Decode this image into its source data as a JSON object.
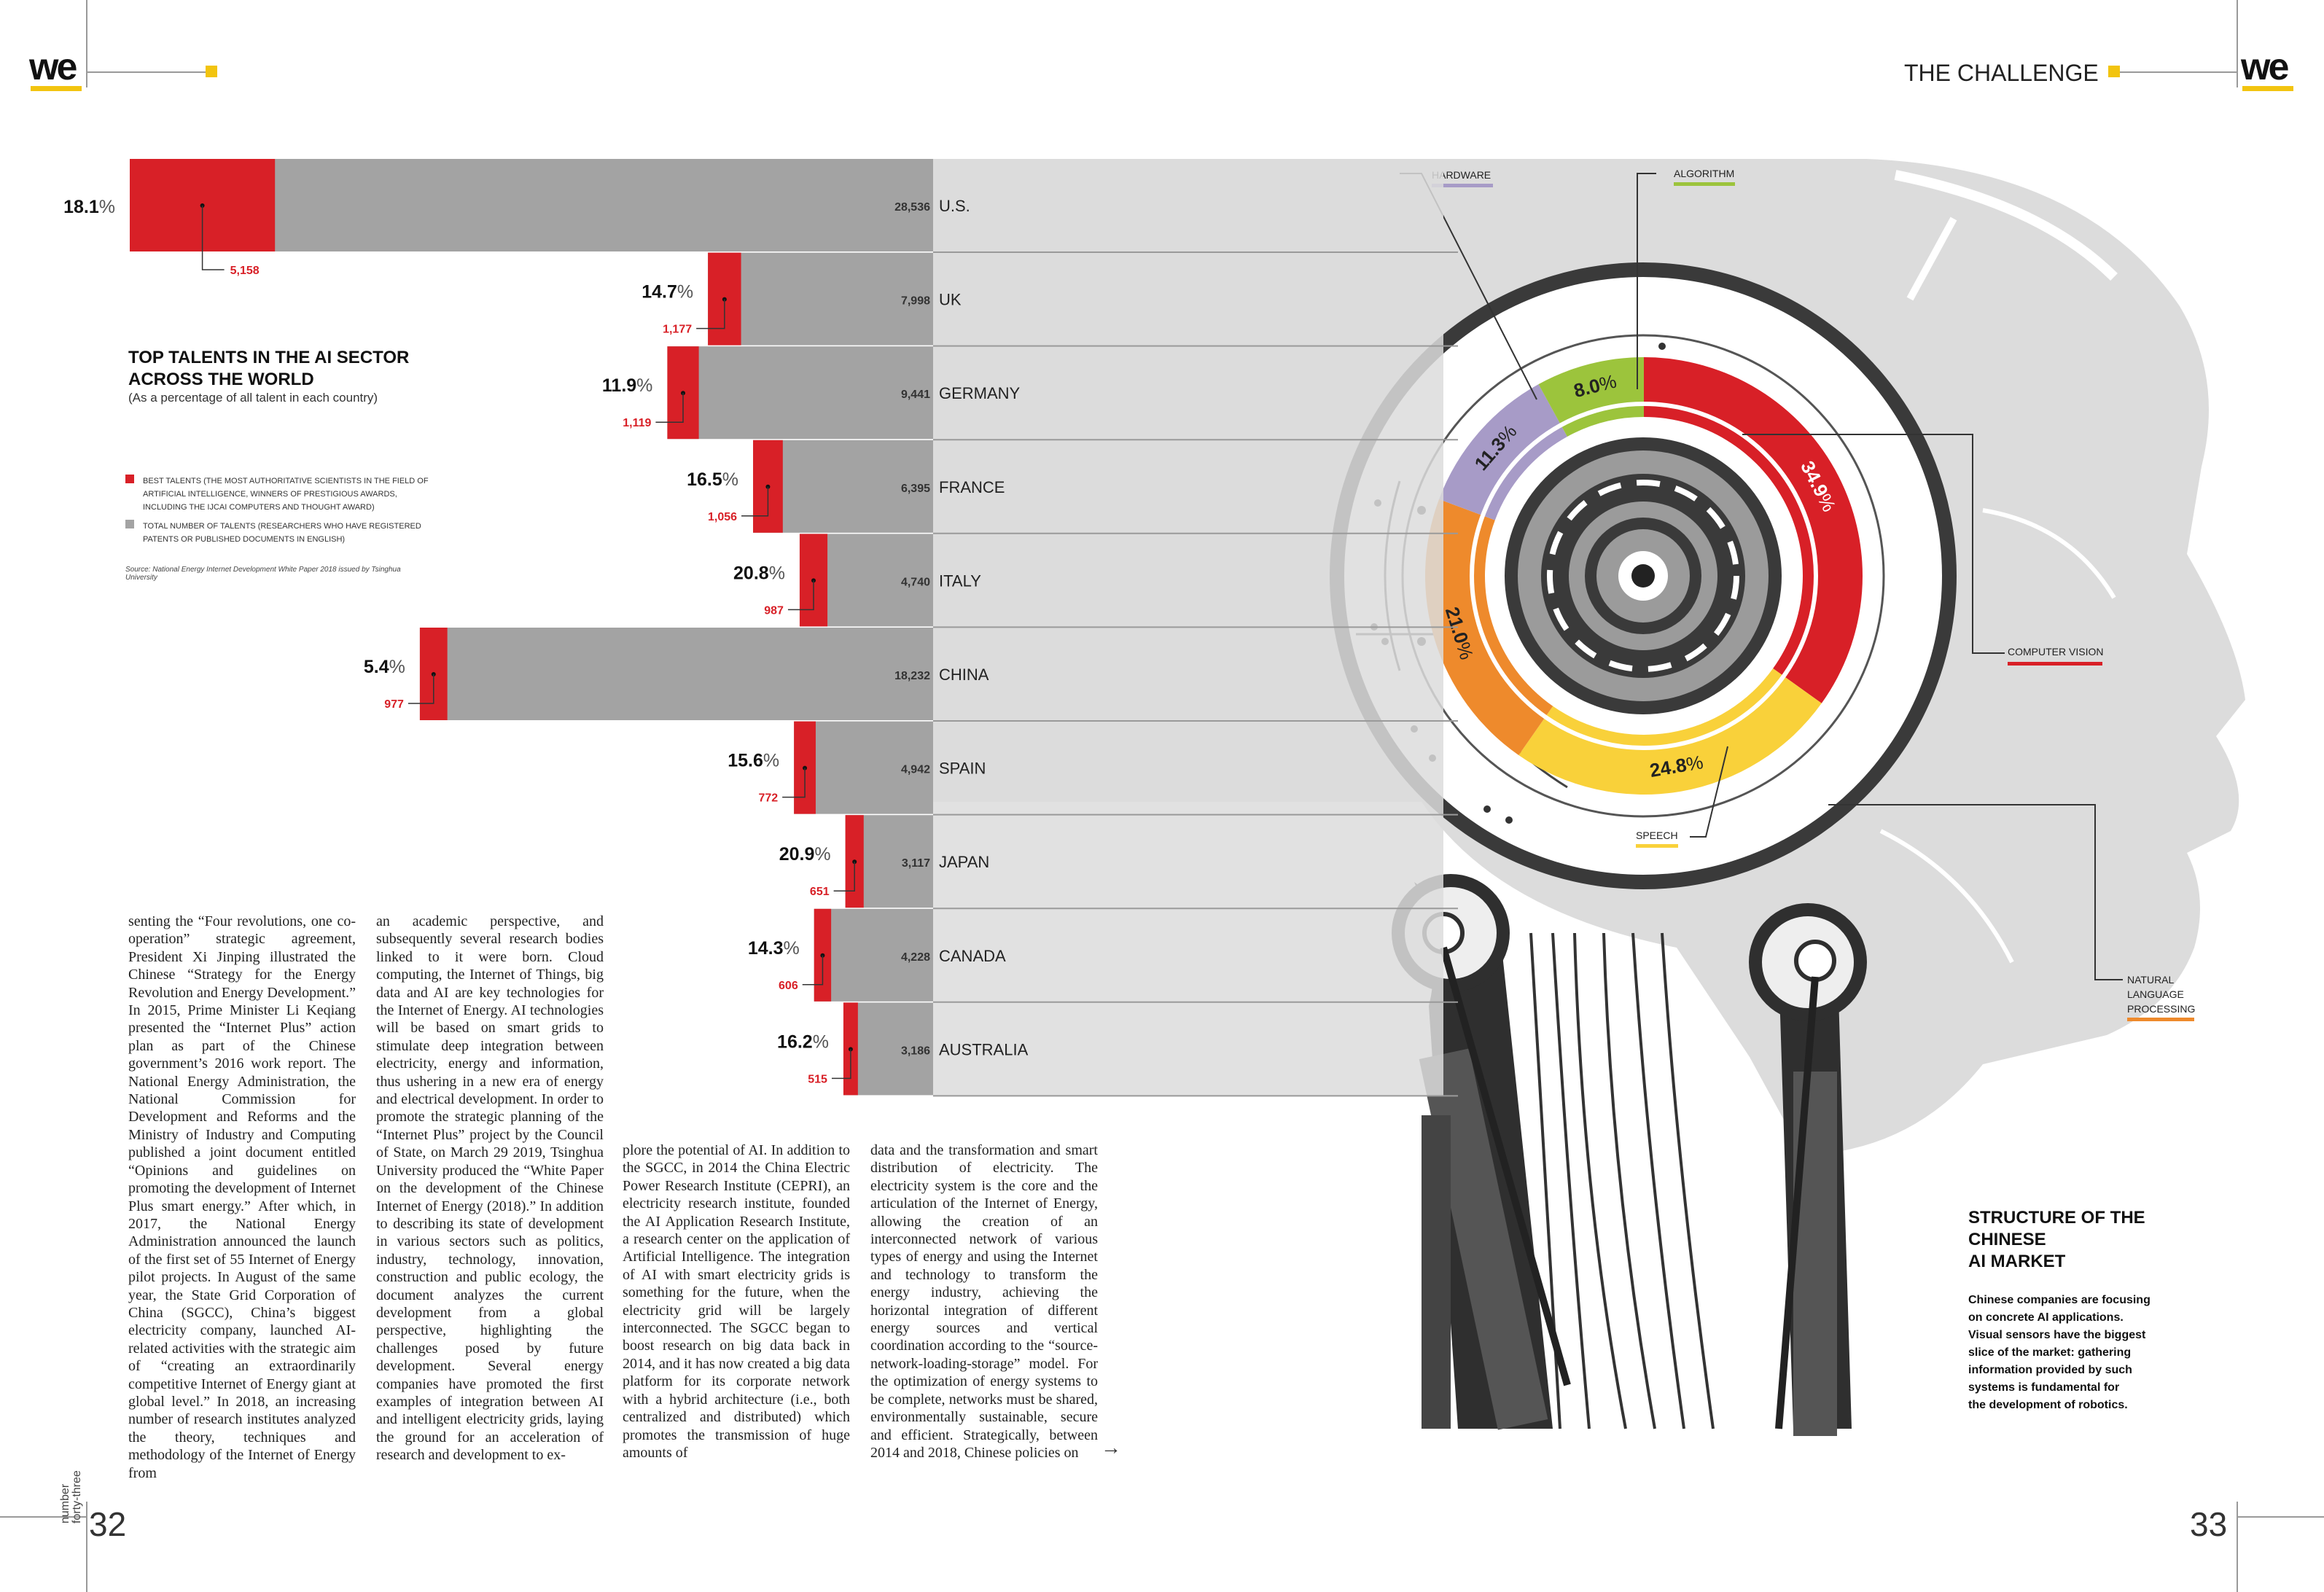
{
  "header": {
    "logo": "we",
    "section": "THE CHALLENGE"
  },
  "talent_chart": {
    "title_line1": "TOP TALENTS IN THE AI SECTOR",
    "title_line2": "ACROSS THE WORLD",
    "subtitle": "(As a percentage of all talent in each country)",
    "legend": [
      {
        "label": "BEST TALENTS (THE MOST AUTHORITATIVE SCIENTISTS IN THE FIELD OF ARTIFICIAL INTELLIGENCE, WINNERS OF PRESTIGIOUS AWARDS, INCLUDING THE IJCAI COMPUTERS AND THOUGHT AWARD)",
        "color": "#d82027"
      },
      {
        "label": "TOTAL NUMBER OF TALENTS (RESEARCHERS WHO HAVE REGISTERED PATENTS OR PUBLISHED DOCUMENTS IN ENGLISH)",
        "color": "#a3a3a3"
      }
    ],
    "source": "Source: National Energy Internet Development White Paper 2018 issued by Tsinghua University"
  },
  "chart_data": {
    "type": "bar",
    "categories": [
      "U.S.",
      "UK",
      "GERMANY",
      "FRANCE",
      "ITALY",
      "CHINA",
      "SPAIN",
      "JAPAN",
      "CANADA",
      "AUSTRALIA"
    ],
    "series": [
      {
        "name": "TOTAL NUMBER OF TALENTS",
        "values": [
          28536,
          7998,
          9441,
          6395,
          4740,
          18232,
          4942,
          3117,
          4228,
          3186
        ]
      },
      {
        "name": "BEST TALENTS",
        "values": [
          5158,
          1177,
          1119,
          1056,
          987,
          977,
          772,
          651,
          606,
          515
        ]
      }
    ],
    "percent_labels": [
      "18.1",
      "14.7",
      "11.9",
      "16.5",
      "20.8",
      "5.4",
      "15.6",
      "20.9",
      "14.3",
      "16.2"
    ],
    "percent_unit": "%"
  },
  "market_chart": {
    "title_line1": "STRUCTURE OF THE CHINESE",
    "title_line2": "AI MARKET",
    "description": [
      "Chinese companies are focusing",
      "on concrete AI applications.",
      "Visual sensors have the biggest",
      "slice of the market: gathering",
      "information provided by such",
      "systems is fundamental for",
      "the development of robotics."
    ],
    "segments": [
      {
        "name": "COMPUTER VISION",
        "value": "34.9",
        "color": "#d82027"
      },
      {
        "name": "SPEECH",
        "value": "24.8",
        "color": "#f9d13a"
      },
      {
        "name": "NATURAL LANGUAGE PROCESSING",
        "value": "21.0",
        "color": "#ee8a2c"
      },
      {
        "name": "HARDWARE",
        "value": "11.3",
        "color": "#a79bc7"
      },
      {
        "name": "ALGORITHM",
        "value": "8.0",
        "color": "#9cc43c"
      }
    ],
    "labels": {
      "hardware": "HARDWARE",
      "algorithm": "ALGORITHM",
      "computer_vision": "COMPUTER VISION",
      "speech": "SPEECH",
      "nlp_1": "NATURAL",
      "nlp_2": "LANGUAGE",
      "nlp_3": "PROCESSING"
    }
  },
  "article": {
    "col1": "senting the “Four revolutions, one co-operation” strategic agreement, President Xi Jinping illustrated the Chinese “Strategy for the Energy Revolution and Energy Development.” In 2015, Prime Minister Li Keqiang presented the “Internet Plus” action plan as part of the Chinese government’s 2016 work report. The National Energy Administration, the National Commission for Development and Reforms and the Ministry of Industry and Computing published a joint document entitled “Opinions and guidelines on promoting the development of Internet Plus smart energy.” After which, in 2017, the National Energy Administration announced the launch of the first set of 55 Internet of Energy pilot projects. In August of the same year, the State Grid Corporation of China (SGCC), China’s biggest electricity company, launched AI-related activities with the strategic aim of “creating an extraordinarily competitive Internet of Energy giant at global level.” In 2018, an increasing number of research institutes analyzed the theory, techniques and methodology of the Internet of Energy from",
    "col2": "an academic perspective, and subsequently several research bodies linked to it were born. Cloud computing, the Internet of Things, big data and AI are key technologies for the Internet of Energy. AI technologies will be based on smart grids to stimulate deep integration between electricity, energy and information, thus ushering in a new era of energy and electrical development. In order to promote the strategic planning of the “Internet Plus” project by the Council of State, on March 29 2019, Tsinghua University produced the “White Paper on the development of the Chinese Internet of Energy (2018).” In addition to describing its state of development in various sectors such as politics, industry, technology, innovation, construction and public ecology, the document analyzes the current development from a global perspective, highlighting the challenges posed by future development. Several energy companies have promoted the first examples of integration between AI and intelligent electricity grids, laying the ground for an acceleration of research and development to ex-",
    "col3": "plore the potential of AI. In addition to the SGCC, in 2014 the China Electric Power Research Institute (CEPRI), an electricity research institute, founded the AI Application Research Institute, a research center on the application of Artificial Intelligence. The integration of AI with smart electricity grids is something for the future, when the electricity grid will be largely interconnected. The SGCC began to boost research on big data back in 2014, and it has now created a big data platform for its corporate network with a hybrid architecture (i.e., both centralized and distributed) which promotes the transmission of huge amounts of",
    "col4": "data and the transformation and smart distribution of electricity. The electricity system is the core and the articulation of the Internet of Energy, allowing the creation of an interconnected network of various types of energy and using the Internet and technology to transform the energy industry, achieving the horizontal integration of different energy sources and vertical coordination according to the “source-network-loading-storage” model. For the optimization of energy systems to be complete, networks must be shared, environmentally sustainable, secure and efficient. Strategically, between 2014 and 2018, Chinese policies on",
    "arrow": "→"
  },
  "footer": {
    "page_left": "32",
    "page_right": "33",
    "issue_1": "number",
    "issue_2": "forty-three"
  }
}
